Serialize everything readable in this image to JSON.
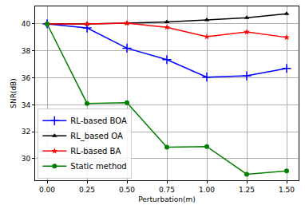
{
  "chart_data": {
    "type": "line",
    "x_label": "Perturbation(m)",
    "y_label": "SNR(dB)",
    "x": [
      0,
      0.25,
      0.5,
      0.75,
      1.0,
      1.25,
      1.5
    ],
    "series": [
      {
        "name": "RL-based BOA",
        "color": "#0000ff",
        "marker": "cross",
        "values": [
          40.0,
          39.7,
          38.2,
          37.35,
          36.05,
          36.15,
          36.7
        ]
      },
      {
        "name": "RL_based OA",
        "color": "#000000",
        "marker": "triangle",
        "values": [
          40.0,
          40.0,
          40.05,
          40.15,
          40.3,
          40.45,
          40.75
        ]
      },
      {
        "name": "RL-based BA",
        "color": "#ff0000",
        "marker": "star",
        "values": [
          40.0,
          40.0,
          40.05,
          39.75,
          39.05,
          39.4,
          39.0
        ]
      },
      {
        "name": "Static method",
        "color": "#008000",
        "marker": "circle",
        "values": [
          40.0,
          34.1,
          34.15,
          30.85,
          30.9,
          28.85,
          29.1
        ]
      }
    ],
    "xlim": [
      -0.075,
      1.575
    ],
    "xticks": [
      {
        "value": 0,
        "label": "0.00"
      },
      {
        "value": 0.25,
        "label": "0.25"
      },
      {
        "value": 0.5,
        "label": "0.50"
      },
      {
        "value": 0.75,
        "label": "0.75"
      },
      {
        "value": 1.0,
        "label": "1.00"
      },
      {
        "value": 1.25,
        "label": "1.25"
      },
      {
        "value": 1.5,
        "label": "1.50"
      }
    ],
    "ylim": [
      28.4,
      41.3
    ],
    "yticks": [
      30,
      32,
      34,
      36,
      38,
      40
    ],
    "grid": true,
    "legend": "lower left"
  }
}
